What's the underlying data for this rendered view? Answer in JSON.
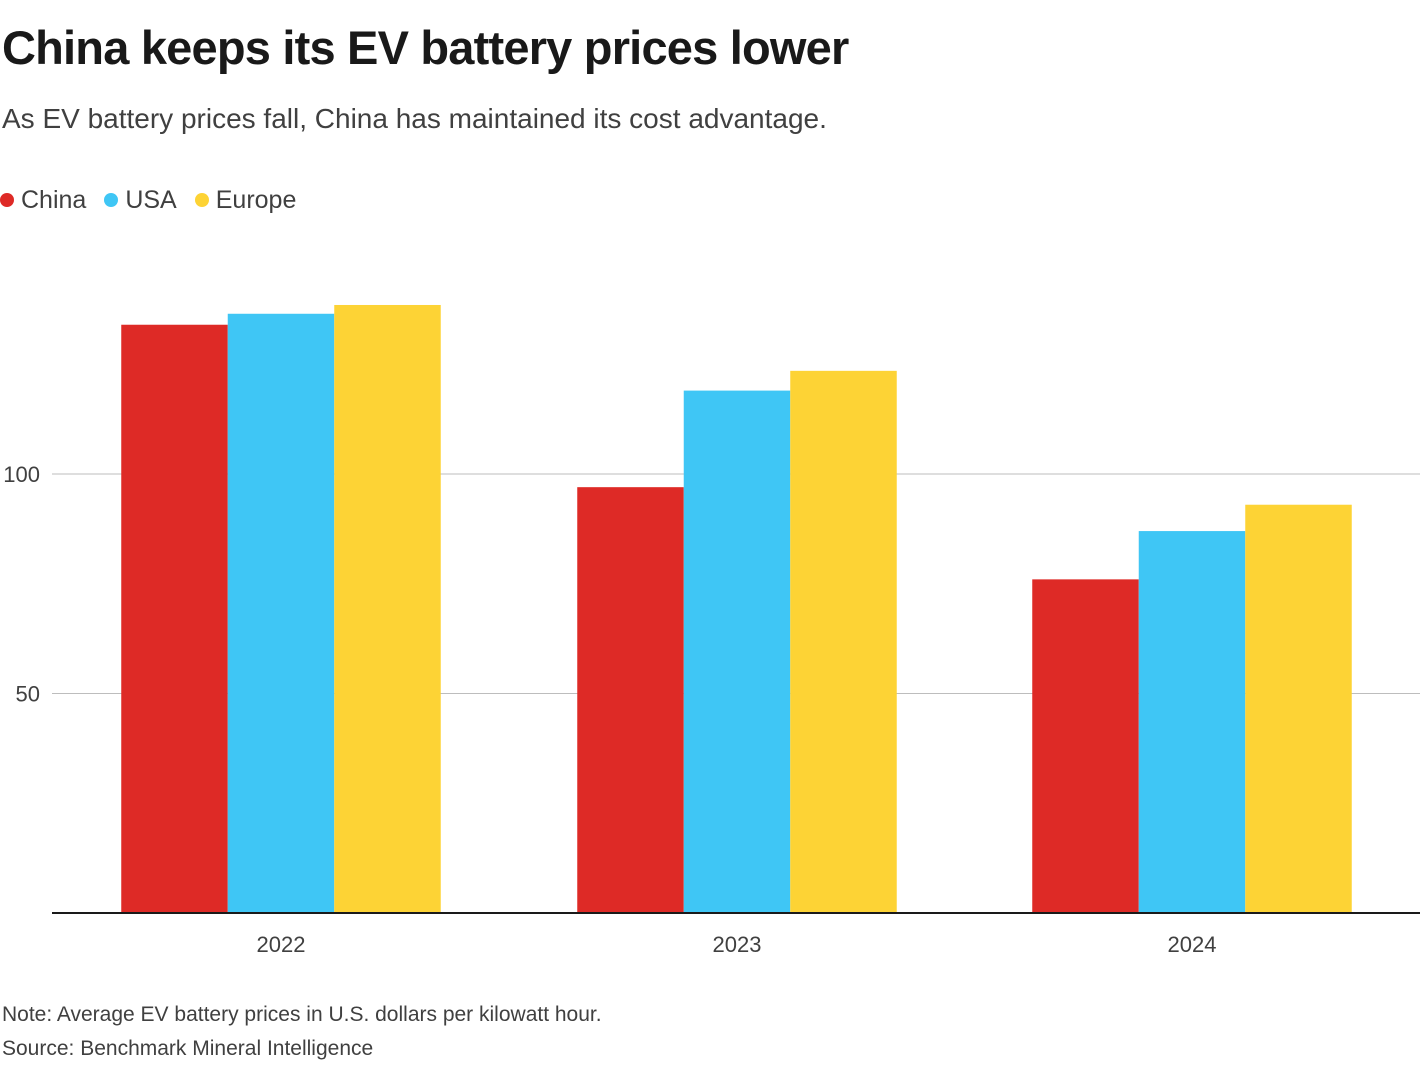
{
  "title": "China keeps its EV battery prices lower",
  "subtitle": "As EV battery prices fall, China has maintained its cost advantage.",
  "legend": [
    {
      "label": "China",
      "color": "#de2a26"
    },
    {
      "label": "USA",
      "color": "#3fc6f5"
    },
    {
      "label": "Europe",
      "color": "#fdd335"
    }
  ],
  "chart_data": {
    "type": "bar",
    "categories": [
      "2022",
      "2023",
      "2024"
    ],
    "series": [
      {
        "name": "China",
        "color": "#de2a26",
        "values": [
          134,
          97,
          76
        ]
      },
      {
        "name": "USA",
        "color": "#3fc6f5",
        "values": [
          136.5,
          119,
          87
        ]
      },
      {
        "name": "Europe",
        "color": "#fdd335",
        "values": [
          138.5,
          123.5,
          93
        ]
      }
    ],
    "yticks": [
      50,
      100
    ],
    "ylim": [
      0,
      140
    ],
    "xlabel": "",
    "ylabel": "",
    "grid": true,
    "legend_position": "top-left"
  },
  "note": "Note: Average EV battery prices in U.S. dollars per kilowatt hour.",
  "source": "Source: Benchmark Mineral Intelligence"
}
